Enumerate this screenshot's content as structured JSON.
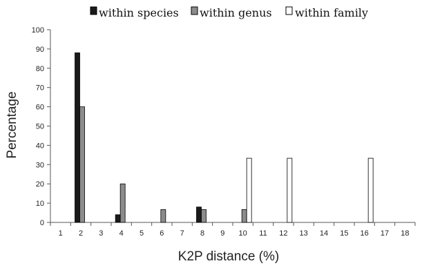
{
  "chart_data": {
    "type": "bar",
    "xlabel": "K2P distance (%)",
    "ylabel": "Percentage",
    "categories": [
      "1",
      "2",
      "3",
      "4",
      "5",
      "6",
      "7",
      "8",
      "9",
      "10",
      "11",
      "12",
      "13",
      "14",
      "15",
      "16",
      "17",
      "18"
    ],
    "ylim": [
      0,
      100
    ],
    "yticks": [
      0,
      10,
      20,
      30,
      40,
      50,
      60,
      70,
      80,
      90,
      100
    ],
    "grid": false,
    "legend_position": "top",
    "series": [
      {
        "name": "within species",
        "color": "#1a1a1a",
        "values": [
          0,
          88,
          0,
          4,
          0,
          0,
          0,
          8,
          0,
          0,
          0,
          0,
          0,
          0,
          0,
          0,
          0,
          0
        ]
      },
      {
        "name": "within genus",
        "color": "#8c8c8c",
        "values": [
          0,
          60,
          0,
          20,
          0,
          6.7,
          0,
          6.7,
          0,
          6.7,
          0,
          0,
          0,
          0,
          0,
          0,
          0,
          0
        ]
      },
      {
        "name": "within family",
        "color": "#ffffff",
        "values": [
          0,
          0,
          0,
          0,
          0,
          0,
          0,
          0,
          0,
          33.3,
          0,
          33.3,
          0,
          0,
          0,
          33.3,
          0,
          0
        ]
      }
    ]
  }
}
